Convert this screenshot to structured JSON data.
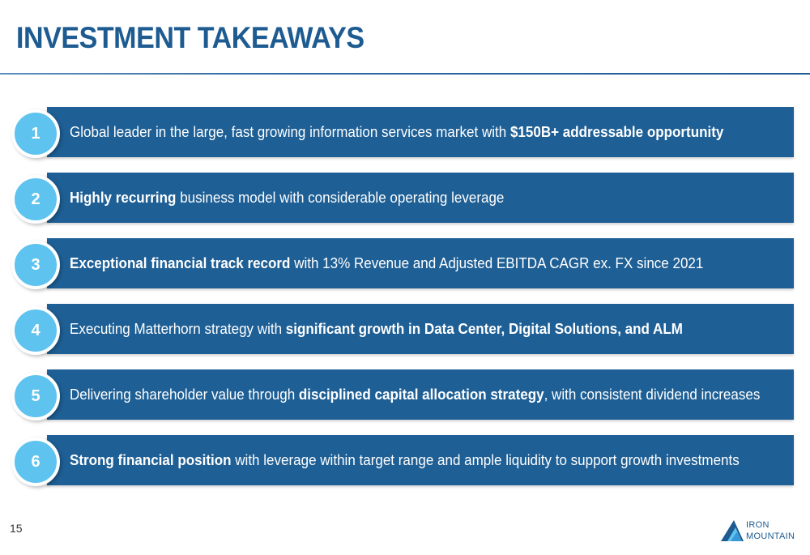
{
  "title": "INVESTMENT TAKEAWAYS",
  "takeaways": [
    {
      "number": "1",
      "segments": [
        {
          "text": "Global leader in the large, fast growing information services market with ",
          "bold": false
        },
        {
          "text": "$150B+ addressable opportunity",
          "bold": true
        }
      ]
    },
    {
      "number": "2",
      "segments": [
        {
          "text": "Highly recurring",
          "bold": true
        },
        {
          "text": " business model with considerable operating leverage",
          "bold": false
        }
      ]
    },
    {
      "number": "3",
      "segments": [
        {
          "text": "Exceptional financial track record",
          "bold": true
        },
        {
          "text": " with 13% Revenue and Adjusted EBITDA CAGR ex. FX since 2021",
          "bold": false
        }
      ]
    },
    {
      "number": "4",
      "segments": [
        {
          "text": "Executing Matterhorn strategy with ",
          "bold": false
        },
        {
          "text": "significant growth in Data Center, Digital Solutions, and ALM",
          "bold": true
        }
      ]
    },
    {
      "number": "5",
      "segments": [
        {
          "text": "Delivering shareholder value through ",
          "bold": false
        },
        {
          "text": "disciplined capital allocation strategy",
          "bold": true
        },
        {
          "text": ", with consistent dividend increases",
          "bold": false
        }
      ]
    },
    {
      "number": "6",
      "segments": [
        {
          "text": "Strong financial position",
          "bold": true
        },
        {
          "text": " with leverage within target range and ample liquidity to support growth investments",
          "bold": false
        }
      ]
    }
  ],
  "page_number": "15",
  "logo": {
    "line1": "IRON",
    "line2": "MOUNTAIN"
  },
  "colors": {
    "title": "#1d5b91",
    "bar": "#1e5f95",
    "circle": "#5ec3ef"
  }
}
